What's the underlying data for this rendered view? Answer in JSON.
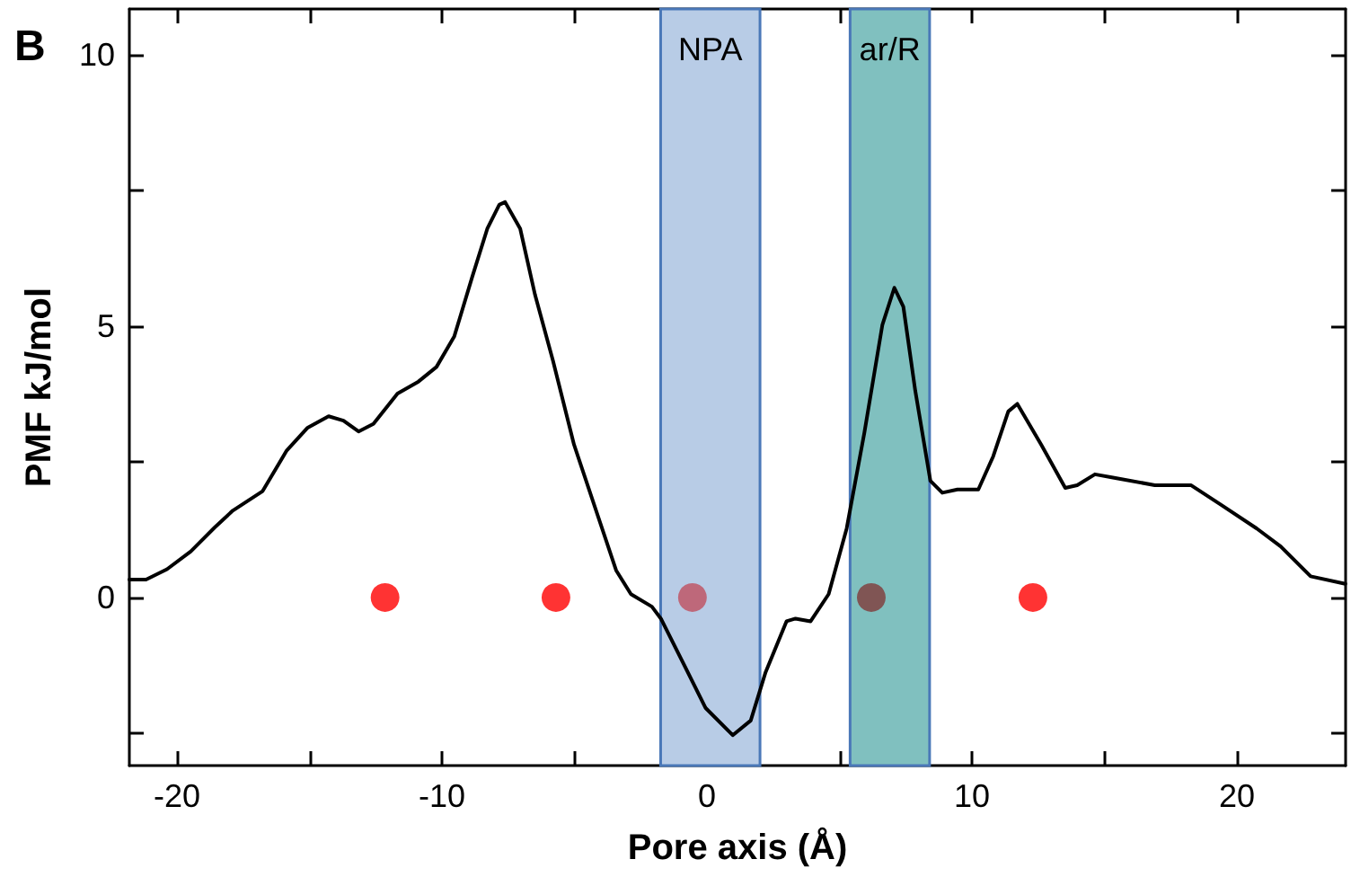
{
  "chart_data": {
    "type": "line",
    "xlabel": "Pore axis (Å)",
    "ylabel": "PMF kJ/mol",
    "annotations": [
      "B"
    ],
    "xlim": [
      -21.8,
      24.1
    ],
    "ylim": [
      -3.1,
      10.85
    ],
    "xticks": [
      -20,
      {
        "value": -15,
        "label": null
      },
      -10,
      {
        "value": -5,
        "label": null
      },
      0,
      {
        "value": 5,
        "label": null
      },
      10,
      {
        "value": 15,
        "label": null
      },
      20
    ],
    "yticks": [
      {
        "value": -2.5,
        "label": null
      },
      0,
      {
        "value": 2.5,
        "label": null
      },
      5,
      {
        "value": 7.5,
        "label": null
      },
      10
    ],
    "bands": [
      {
        "axis": "x",
        "from": -1.75,
        "to": 2.0,
        "label": "NPA",
        "color": "#b8cce6"
      },
      {
        "axis": "x",
        "from": 5.4,
        "to": 8.4,
        "label": "ar/R",
        "color": "#80c0bf"
      }
    ],
    "series": [
      {
        "type": "line",
        "color": "#000000",
        "marker": "none",
        "line_style": "solid",
        "x": [
          -21.8,
          -21.17,
          -20.38,
          -19.48,
          -18.58,
          -17.9,
          -16.77,
          -15.86,
          -15.07,
          -14.28,
          -13.72,
          -13.15,
          -12.59,
          -11.68,
          -10.89,
          -10.21,
          -9.54,
          -8.86,
          -8.29,
          -7.84,
          -7.62,
          -7.05,
          -6.49,
          -5.81,
          -5.02,
          -4.11,
          -3.43,
          -2.87,
          -2.08,
          -1.74,
          -0.95,
          -0.05,
          0.97,
          1.65,
          2.21,
          3.0,
          3.34,
          3.91,
          4.59,
          5.27,
          5.94,
          6.62,
          7.07,
          7.41,
          7.86,
          8.43,
          8.88,
          9.45,
          10.24,
          10.8,
          11.37,
          11.71,
          12.61,
          13.52,
          13.97,
          14.64,
          15.32,
          16.9,
          18.26,
          19.39,
          20.75,
          21.65,
          22.78,
          24.09
        ],
        "values": [
          0.33,
          0.33,
          0.52,
          0.85,
          1.29,
          1.6,
          1.96,
          2.71,
          3.13,
          3.34,
          3.26,
          3.06,
          3.2,
          3.76,
          3.98,
          4.25,
          4.81,
          5.91,
          6.8,
          7.24,
          7.29,
          6.8,
          5.58,
          4.36,
          2.82,
          1.49,
          0.5,
          0.06,
          -0.17,
          -0.39,
          -1.16,
          -2.04,
          -2.54,
          -2.27,
          -1.38,
          -0.44,
          -0.39,
          -0.44,
          0.06,
          1.27,
          3.04,
          5.03,
          5.71,
          5.36,
          3.81,
          2.15,
          1.93,
          1.99,
          1.99,
          2.6,
          3.43,
          3.57,
          2.82,
          2.02,
          2.07,
          2.27,
          2.21,
          2.07,
          2.07,
          1.71,
          1.27,
          0.94,
          0.39,
          0.25
        ]
      },
      {
        "type": "scatter",
        "marker": "circle",
        "x": [
          -12.15,
          -5.7,
          -0.55,
          6.2,
          12.3
        ],
        "values": [
          0,
          0,
          0,
          0,
          0
        ],
        "colors": [
          "#ff0000",
          "#ff0000",
          "#bf4f5f",
          "#7f3a3a",
          "#ff0000"
        ]
      }
    ]
  }
}
